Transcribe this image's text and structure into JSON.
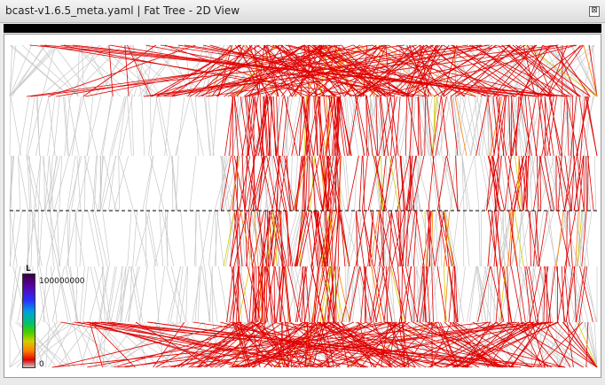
{
  "window": {
    "title": "bcast-v1.6.5_meta.yaml  |  Fat Tree - 2D View",
    "close_glyph": "⊠"
  },
  "legend": {
    "title": "L",
    "max": "100000000",
    "min": "0"
  },
  "colors": {
    "inactive_link": "#c8c8c8",
    "low_traffic": "#e00000",
    "mid_traffic": "#ff8000",
    "high_traffic": "#d0d000",
    "median_line": "#000000"
  }
}
